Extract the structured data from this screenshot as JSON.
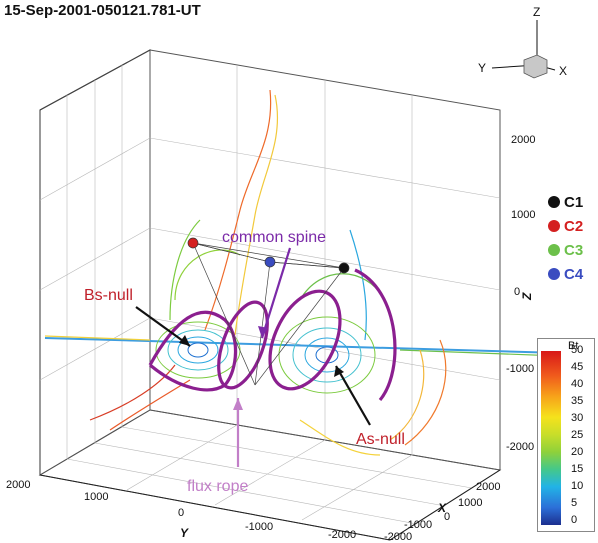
{
  "title": "15-Sep-2001-050121.781-UT",
  "orientation_axes": {
    "z": "Z",
    "y": "Y",
    "x": "X"
  },
  "axes": {
    "z_label": "Z",
    "y_label": "Y",
    "x_label": "X",
    "z_ticks": [
      "2000",
      "1000",
      "0",
      "-1000",
      "-2000"
    ],
    "y_ticks": [
      "2000",
      "1000",
      "0",
      "-1000",
      "-2000"
    ],
    "x_ticks": [
      "2000",
      "1000",
      "0",
      "-1000",
      "-2000"
    ]
  },
  "spacecraft": [
    {
      "label": "C1",
      "color": "#111111"
    },
    {
      "label": "C2",
      "color": "#d42020"
    },
    {
      "label": "C3",
      "color": "#6cc04a"
    },
    {
      "label": "C4",
      "color": "#3a4cc0"
    }
  ],
  "annotations": {
    "common_spine": "common spine",
    "bs_null": "Bs-null",
    "as_null": "As-null",
    "flux_rope": "flux rope"
  },
  "colorbar": {
    "title": "Bt",
    "ticks": [
      "50",
      "45",
      "40",
      "35",
      "30",
      "25",
      "20",
      "15",
      "10",
      "5",
      "0"
    ]
  },
  "colors": {
    "annotation_purple": "#7b2aa8",
    "annotation_red": "#c0202a",
    "annotation_pink": "#c27fc8",
    "flux_rope": "#8b1f8f",
    "spine": "#2aa7df"
  }
}
